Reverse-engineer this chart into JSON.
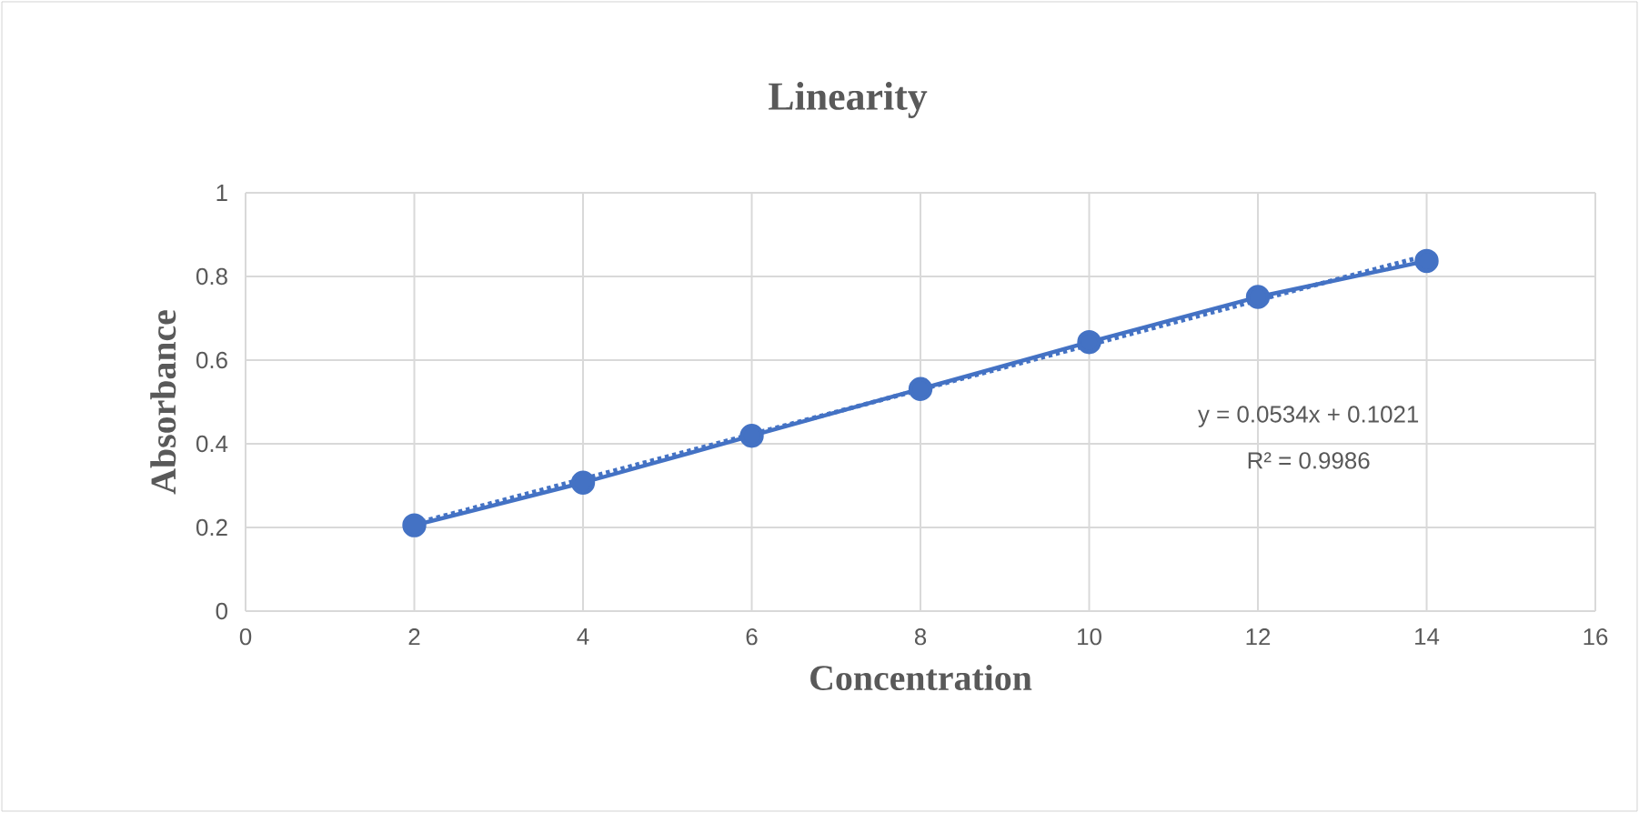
{
  "chart_data": {
    "type": "line",
    "title": "Linearity",
    "xlabel": "Concentration",
    "ylabel": "Absorbance",
    "series": [
      {
        "x": [
          2,
          4,
          6,
          8,
          10,
          12,
          14
        ],
        "values": [
          0.205,
          0.307,
          0.419,
          0.531,
          0.643,
          0.751,
          0.837
        ],
        "color": "#4472c4",
        "marker": "circle",
        "line_style": "solid"
      },
      {
        "x": [
          2,
          14
        ],
        "values": [
          0.209,
          0.85
        ],
        "color": "#4472c4",
        "marker": "none",
        "line_style": "dotted"
      }
    ],
    "annotations": [
      "y = 0.0534x + 0.1021",
      "R² = 0.9986"
    ],
    "xlim": [
      0,
      16
    ],
    "xticks": [
      0,
      2,
      4,
      6,
      8,
      10,
      12,
      14,
      16
    ],
    "ylim": [
      0,
      1
    ],
    "yticks": [
      0,
      0.2,
      0.4,
      0.6,
      0.8,
      1
    ],
    "grid": true
  }
}
